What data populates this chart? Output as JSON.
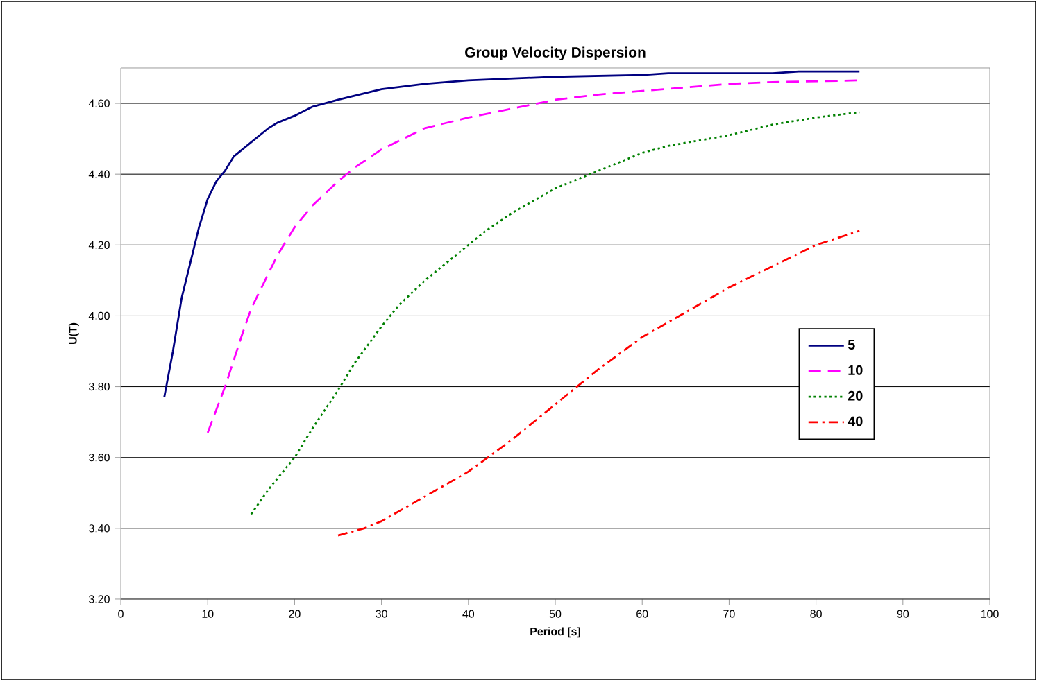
{
  "chart_data": {
    "type": "line",
    "title": "Group Velocity Dispersion",
    "xlabel": "Period [s]",
    "ylabel": "U(T)",
    "xlim": [
      0,
      100
    ],
    "xticks": [
      0,
      10,
      20,
      30,
      40,
      50,
      60,
      70,
      80,
      90,
      100
    ],
    "ylim": [
      3.2,
      4.7
    ],
    "yticks": [
      {
        "value": 3.2,
        "label": "3.20"
      },
      {
        "value": 3.4,
        "label": "3.40"
      },
      {
        "value": 3.6,
        "label": "3.60"
      },
      {
        "value": 3.8,
        "label": "3.80"
      },
      {
        "value": 4.0,
        "label": "4.00"
      },
      {
        "value": 4.2,
        "label": "4.20"
      },
      {
        "value": 4.4,
        "label": "4.40"
      },
      {
        "value": 4.6,
        "label": "4.60"
      }
    ],
    "grid": "y",
    "legend": "right",
    "marker": "none",
    "series": [
      {
        "name": "5",
        "color": "#000080",
        "line_style": "solid",
        "x": [
          5,
          6,
          7,
          8,
          9,
          10,
          11,
          12,
          13,
          15,
          17,
          18,
          20,
          22,
          25,
          30,
          35,
          40,
          50,
          60,
          63,
          70,
          75,
          78,
          85
        ],
        "values": [
          3.77,
          3.9,
          4.05,
          4.15,
          4.25,
          4.33,
          4.38,
          4.41,
          4.45,
          4.49,
          4.53,
          4.545,
          4.565,
          4.59,
          4.61,
          4.64,
          4.655,
          4.665,
          4.675,
          4.68,
          4.685,
          4.685,
          4.685,
          4.69,
          4.69
        ]
      },
      {
        "name": "10",
        "color": "#ff00ff",
        "line_style": "dashed",
        "x": [
          10,
          12,
          14,
          15,
          17,
          18,
          20,
          22,
          25,
          27,
          30,
          35,
          40,
          45,
          50,
          55,
          60,
          65,
          70,
          75,
          85
        ],
        "values": [
          3.67,
          3.8,
          3.95,
          4.02,
          4.12,
          4.17,
          4.25,
          4.31,
          4.38,
          4.42,
          4.47,
          4.53,
          4.56,
          4.585,
          4.61,
          4.625,
          4.635,
          4.645,
          4.655,
          4.66,
          4.665
        ]
      },
      {
        "name": "20",
        "color": "#008000",
        "line_style": "dotted",
        "x": [
          15,
          17,
          20,
          22,
          25,
          27,
          30,
          32,
          35,
          40,
          42,
          45,
          50,
          55,
          60,
          63,
          70,
          75,
          80,
          85
        ],
        "values": [
          3.44,
          3.51,
          3.6,
          3.68,
          3.79,
          3.87,
          3.97,
          4.03,
          4.1,
          4.2,
          4.24,
          4.29,
          4.36,
          4.41,
          4.46,
          4.48,
          4.51,
          4.54,
          4.56,
          4.575
        ]
      },
      {
        "name": "40",
        "color": "#ff0000",
        "line_style": "dashdot",
        "x": [
          25,
          28,
          30,
          35,
          40,
          45,
          50,
          55,
          60,
          65,
          70,
          75,
          80,
          85
        ],
        "values": [
          3.38,
          3.4,
          3.42,
          3.49,
          3.56,
          3.65,
          3.75,
          3.85,
          3.94,
          4.01,
          4.08,
          4.14,
          4.2,
          4.24
        ]
      }
    ]
  }
}
